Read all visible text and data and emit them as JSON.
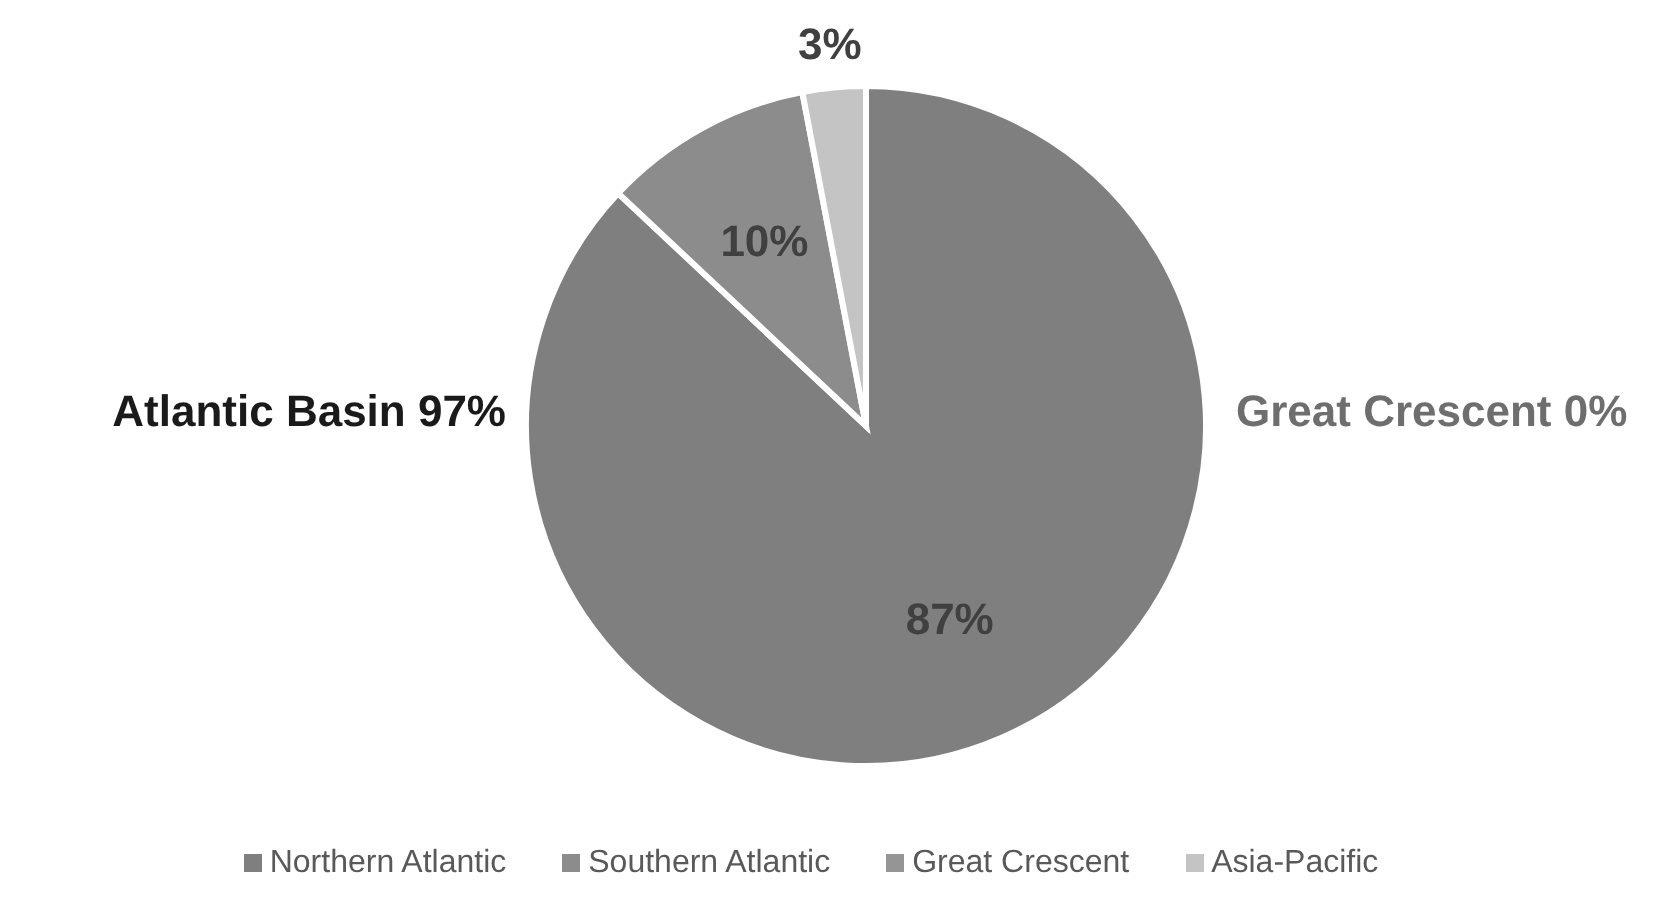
{
  "chart_data": {
    "type": "pie",
    "categories": [
      "Northern Atlantic",
      "Southern Atlantic",
      "Great Crescent",
      "Asia-Pacific"
    ],
    "values": [
      87,
      10,
      0,
      3
    ],
    "colors": [
      "#7f7f7f",
      "#8c8c8c",
      "#959595",
      "#c4c4c4"
    ],
    "value_labels": [
      "87%",
      "10%",
      null,
      "3%"
    ],
    "annotations": [
      "Atlantic Basin 97%",
      "Great Crescent 0%"
    ],
    "legend": "bottom"
  }
}
